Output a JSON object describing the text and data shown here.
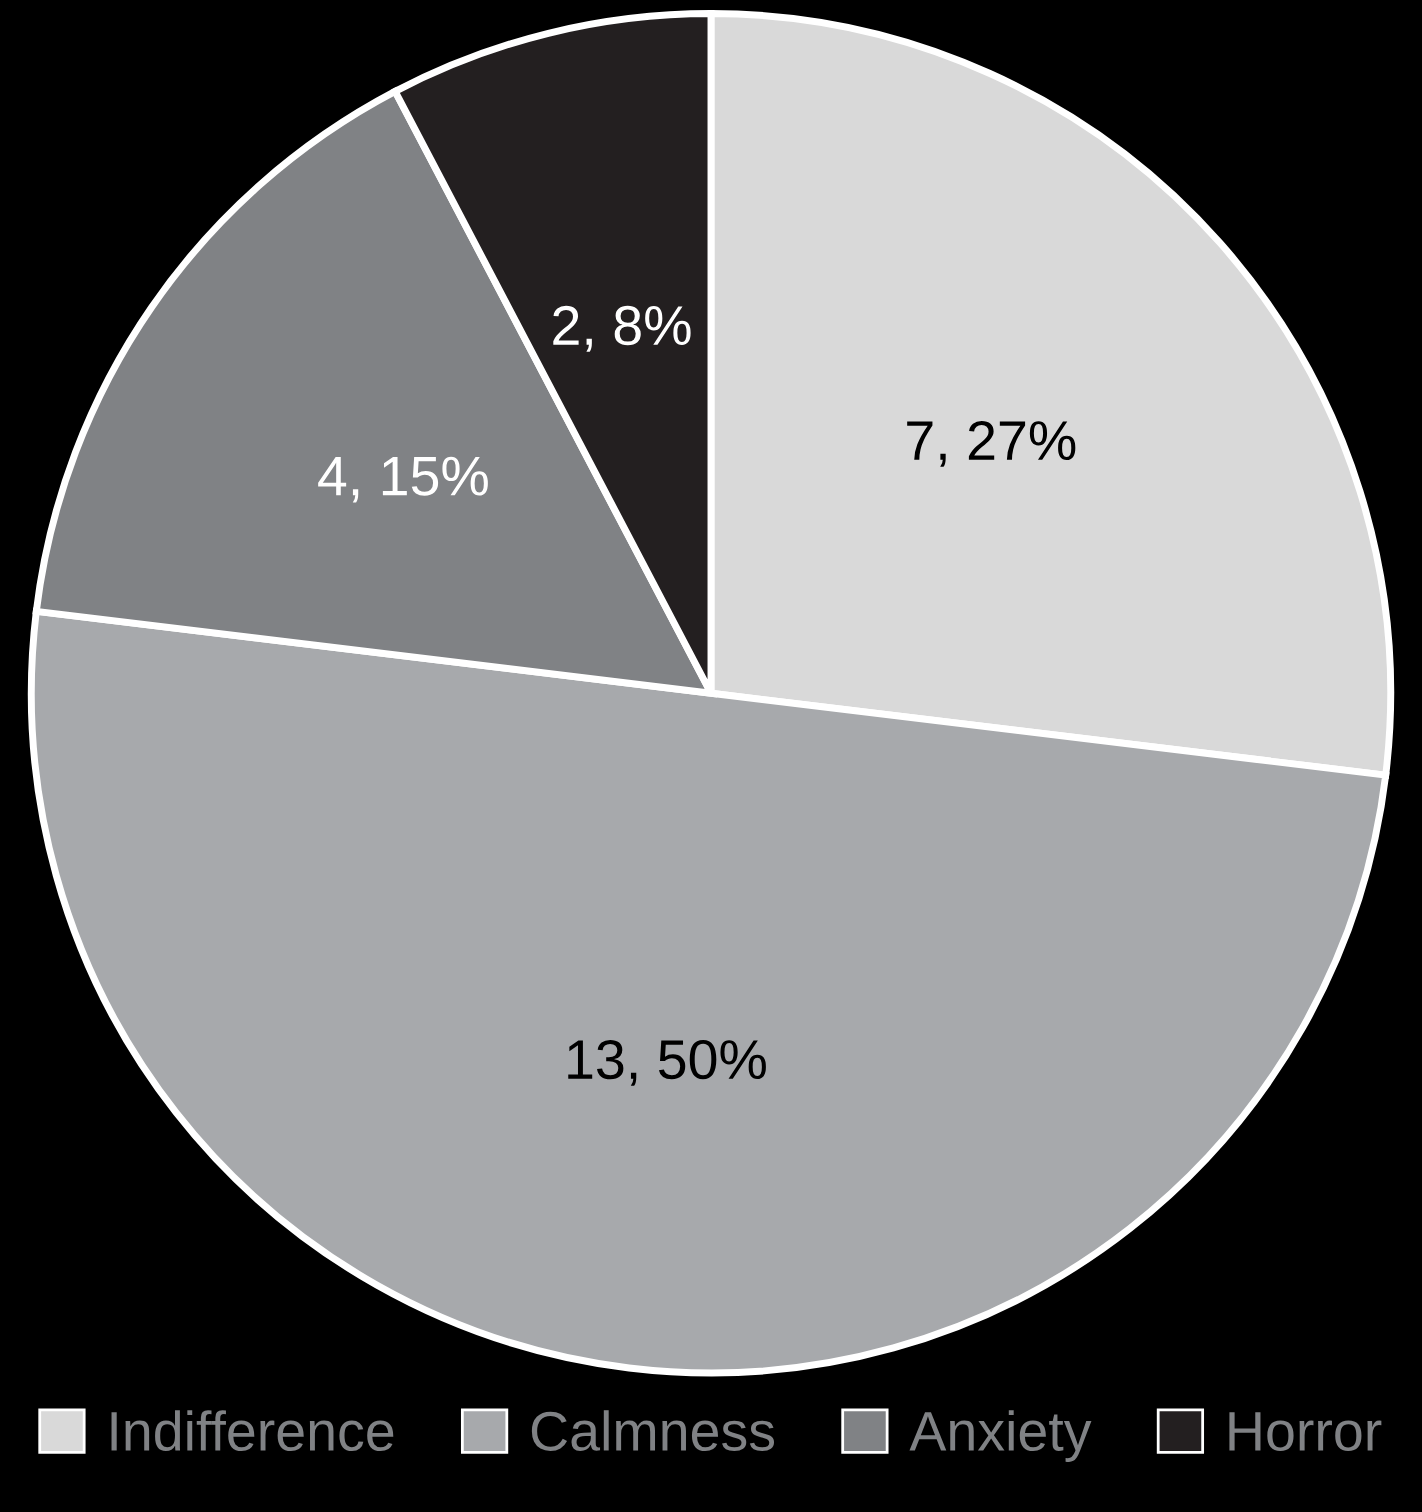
{
  "chart_data": {
    "type": "pie",
    "categories": [
      "Indifference",
      "Calmness",
      "Anxiety",
      "Horror"
    ],
    "values": [
      7,
      13,
      4,
      2
    ],
    "value_labels": [
      "7, 27%",
      "13, 50%",
      "4, 15%",
      "2, 8%"
    ],
    "colors": [
      "#d9d9d9",
      "#a7a9ac",
      "#808285",
      "#231f20"
    ],
    "legend": "bottom"
  }
}
